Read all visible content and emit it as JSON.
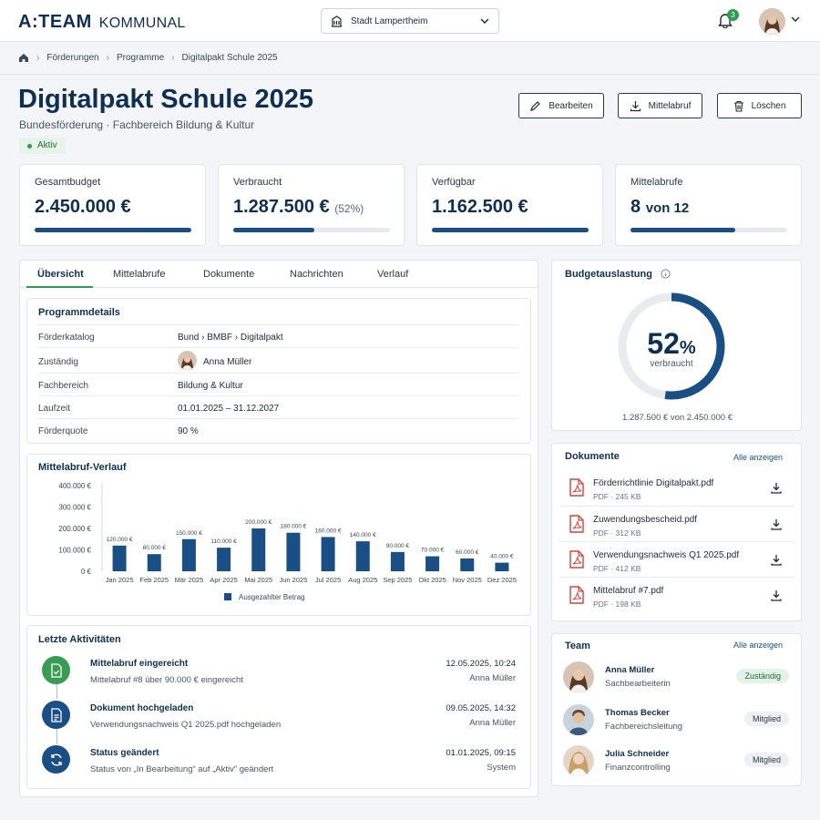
{
  "header": {
    "brand": "A:TEAM",
    "brand_sub": "KOMMUNAL",
    "city": "Stadt Lampertheim",
    "notif_count": "3"
  },
  "breadcrumb": [
    "Förderungen",
    "Programme",
    "Digitalpakt Schule 2025"
  ],
  "page": {
    "title": "Digitalpakt Schule 2025",
    "subtitle": "Bundesförderung  ·  Fachbereich Bildung & Kultur",
    "status": "Aktiv"
  },
  "actions": {
    "edit": "Bearbeiten",
    "call": "Mittelabruf",
    "delete": "Löschen"
  },
  "kpis": [
    {
      "label": "Gesamtbudget",
      "value": "2.450.000 €",
      "extra": "",
      "progress": 1.0
    },
    {
      "label": "Verbraucht",
      "value": "1.287.500 €",
      "extra": "(52%)",
      "progress": 0.52
    },
    {
      "label": "Verfügbar",
      "value": "1.162.500 €",
      "extra": "",
      "progress": 1.0
    },
    {
      "label": "Mittelabrufe",
      "value": "8",
      "extra": "von 12",
      "progress": 0.67
    }
  ],
  "tabs": [
    "Übersicht",
    "Mittelabrufe",
    "Dokumente",
    "Nachrichten",
    "Verlauf"
  ],
  "details": {
    "title": "Programmdetails",
    "rows": [
      {
        "key": "Förderkatalog",
        "value": "Bund  ›  BMBF  ›  Digitalpakt"
      },
      {
        "key": "Zuständig",
        "value": "Anna Müller"
      },
      {
        "key": "Fachbereich",
        "value": "Bildung & Kultur"
      },
      {
        "key": "Laufzeit",
        "value": "01.01.2025 – 31.12.2027"
      },
      {
        "key": "Förderquote",
        "value": "90 %"
      }
    ]
  },
  "chart_data": {
    "type": "bar",
    "title": "Mittelabruf-Verlauf",
    "categories": [
      "Jan 2025",
      "Feb 2025",
      "Mär 2025",
      "Apr 2025",
      "Mai 2025",
      "Jun 2025",
      "Jul 2025",
      "Aug 2025",
      "Sep 2025",
      "Okt 2025",
      "Nov 2025",
      "Dez 2025"
    ],
    "values": [
      120000,
      80000,
      150000,
      110000,
      200000,
      180000,
      160000,
      140000,
      90000,
      70000,
      60000,
      40000
    ],
    "value_labels": [
      "120.000 €",
      "80.000 €",
      "150.000 €",
      "110.000 €",
      "200.000 €",
      "180.000 €",
      "160.000 €",
      "140.000 €",
      "90.000 €",
      "70.000 €",
      "60.000 €",
      "40.000 €"
    ],
    "yticks": [
      "0 €",
      "100.000 €",
      "200.000 €",
      "300.000 €",
      "400.000 €"
    ],
    "ylim": [
      0,
      400000
    ],
    "legend": "Ausgezahlter Betrag",
    "color": "#1a4f86",
    "grid": false
  },
  "activities": {
    "title": "Letzte Aktivitäten",
    "items": [
      {
        "title": "Mittelabruf eingereicht",
        "desc": "Mittelabruf #8 über 90.000 € eingereicht",
        "time": "12.05.2025, 10:24",
        "user": "Anna Müller",
        "color": "#3a9b52"
      },
      {
        "title": "Dokument hochgeladen",
        "desc": "Verwendungsnachweis Q1 2025.pdf hochgeladen",
        "time": "09.05.2025, 14:32",
        "user": "Anna Müller",
        "color": "#1a4f86"
      },
      {
        "title": "Status geändert",
        "desc": "Status von „In Bearbeitung“ auf „Aktiv“ geändert",
        "time": "01.01.2025, 09:15",
        "user": "System",
        "color": "#1a4f86"
      }
    ]
  },
  "budget": {
    "title": "Budgetauslastung",
    "percent": "52",
    "percent_sign": "%",
    "caption": "verbraucht",
    "summary": "1.287.500 € von 2.450.000 €",
    "fraction": 0.52
  },
  "documents": {
    "title": "Dokumente",
    "see_all": "Alle anzeigen",
    "items": [
      {
        "name": "Förderrichtlinie Digitalpakt.pdf",
        "size": "PDF · 245 KB"
      },
      {
        "name": "Zuwendungsbescheid.pdf",
        "size": "PDF · 312 KB"
      },
      {
        "name": "Verwendungsnachweis Q1 2025.pdf",
        "size": "PDF · 412 KB"
      },
      {
        "name": "Mittelabruf #7.pdf",
        "size": "PDF · 198 KB"
      }
    ]
  },
  "team": {
    "title": "Team",
    "see_all": "Alle anzeigen",
    "members": [
      {
        "name": "Anna Müller",
        "role": "Sachbearbeiterin",
        "badge": "Zuständig"
      },
      {
        "name": "Thomas Becker",
        "role": "Fachbereichsleitung",
        "badge": "Mitglied"
      },
      {
        "name": "Julia Schneider",
        "role": "Finanzcontrolling",
        "badge": "Mitglied"
      }
    ]
  }
}
